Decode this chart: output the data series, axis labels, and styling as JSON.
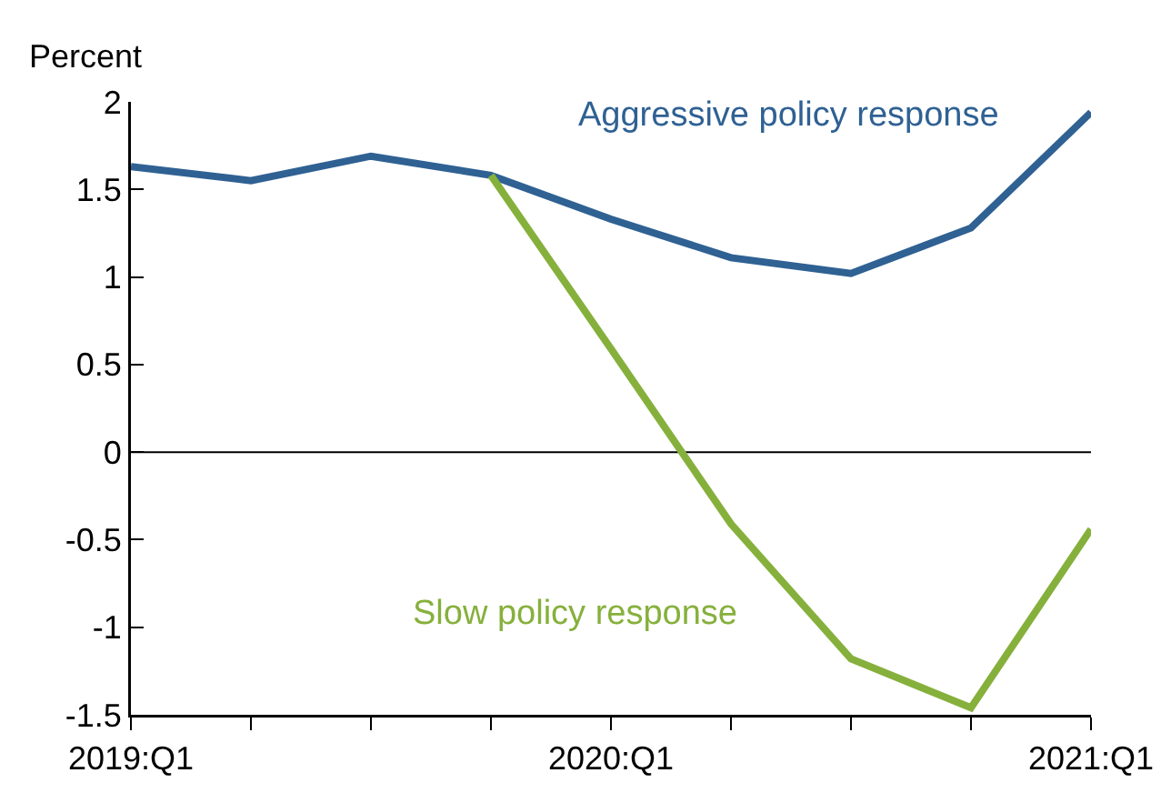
{
  "chart_data": {
    "type": "line",
    "ylabel": "Percent",
    "categories": [
      "2019:Q1",
      null,
      null,
      null,
      "2020:Q1",
      null,
      null,
      null,
      "2021:Q1"
    ],
    "series": [
      {
        "name": "Aggressive policy response",
        "color": "#2f6193",
        "values": [
          1.63,
          1.55,
          1.69,
          1.58,
          1.33,
          1.11,
          1.02,
          1.28,
          1.94
        ]
      },
      {
        "name": "Slow policy response",
        "color": "#86b03c",
        "values": [
          null,
          null,
          null,
          1.58,
          0.59,
          -0.41,
          -1.18,
          -1.46,
          -0.44
        ]
      }
    ],
    "ylim": [
      -1.5,
      2
    ],
    "yticks": [
      -1.5,
      -1,
      -0.5,
      0,
      0.5,
      1,
      1.5,
      2
    ],
    "ref_lines": [
      {
        "axis": "y",
        "value": 0,
        "color": "#000000"
      }
    ],
    "grid": false,
    "legend": false,
    "marker": "none",
    "line_style": "solid"
  }
}
